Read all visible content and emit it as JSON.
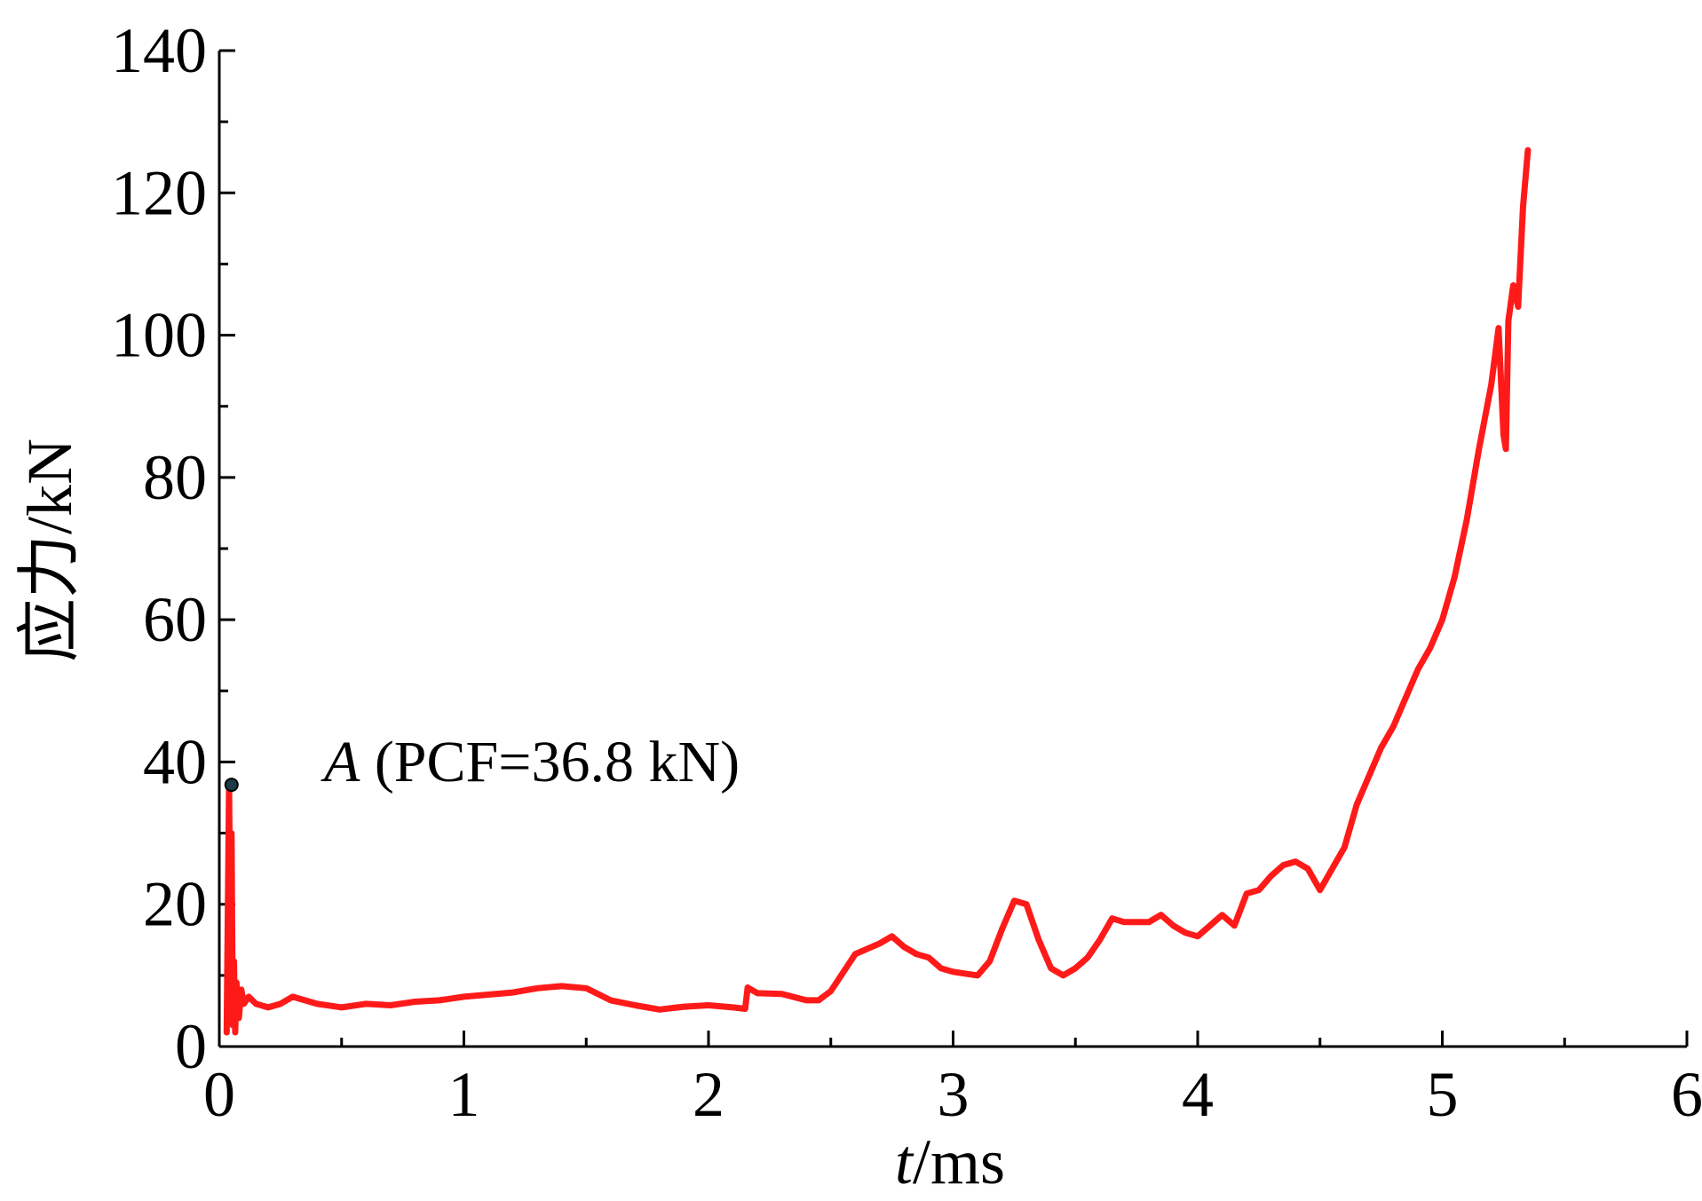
{
  "chart_data": {
    "type": "line",
    "title": "",
    "xlabel": {
      "italic": "t",
      "rest": "/ms"
    },
    "ylabel": "应力/kN",
    "xlim": [
      0,
      6
    ],
    "ylim": [
      0,
      140
    ],
    "x_ticks": [
      0,
      1,
      2,
      3,
      4,
      5,
      6
    ],
    "y_ticks": [
      0,
      20,
      40,
      60,
      80,
      100,
      120,
      140
    ],
    "grid": false,
    "annotation": {
      "italic": "A",
      "rest": " (PCF=36.8 kN)",
      "point": {
        "x": 0.05,
        "y": 36.8
      }
    },
    "series": [
      {
        "color": "#ff1a1a",
        "x": [
          0.03,
          0.04,
          0.045,
          0.05,
          0.055,
          0.06,
          0.065,
          0.07,
          0.08,
          0.09,
          0.1,
          0.12,
          0.15,
          0.2,
          0.25,
          0.3,
          0.35,
          0.4,
          0.5,
          0.6,
          0.7,
          0.8,
          0.9,
          1.0,
          1.1,
          1.2,
          1.3,
          1.4,
          1.5,
          1.6,
          1.7,
          1.8,
          1.9,
          2.0,
          2.1,
          2.15,
          2.16,
          2.2,
          2.3,
          2.4,
          2.45,
          2.5,
          2.6,
          2.7,
          2.75,
          2.8,
          2.85,
          2.9,
          2.95,
          3.0,
          3.1,
          3.15,
          3.2,
          3.25,
          3.3,
          3.35,
          3.4,
          3.45,
          3.5,
          3.55,
          3.6,
          3.65,
          3.7,
          3.8,
          3.85,
          3.9,
          3.95,
          4.0,
          4.05,
          4.1,
          4.15,
          4.2,
          4.25,
          4.3,
          4.35,
          4.4,
          4.45,
          4.5,
          4.55,
          4.6,
          4.65,
          4.7,
          4.75,
          4.8,
          4.85,
          4.9,
          4.95,
          5.0,
          5.05,
          5.1,
          5.15,
          5.2,
          5.23,
          5.25,
          5.26,
          5.27,
          5.29,
          5.31,
          5.33,
          5.35
        ],
        "y": [
          2,
          36.8,
          15,
          30,
          3,
          12,
          2,
          9,
          4,
          8,
          6,
          7,
          6,
          5.5,
          6,
          7,
          6.5,
          6,
          5.5,
          6,
          5.8,
          6.3,
          6.5,
          7,
          7.3,
          7.6,
          8.2,
          8.5,
          8.2,
          6.5,
          5.8,
          5.2,
          5.6,
          5.8,
          5.5,
          5.3,
          8.3,
          7.5,
          7.4,
          6.5,
          6.5,
          7.8,
          13,
          14.5,
          15.5,
          14,
          13,
          12.5,
          11,
          10.5,
          10,
          12,
          16.5,
          20.5,
          20,
          15,
          11,
          10,
          11,
          12.5,
          15,
          18,
          17.5,
          17.5,
          18.5,
          17,
          16,
          15.5,
          17,
          18.5,
          17,
          21.5,
          22,
          24,
          25.5,
          26,
          25,
          22,
          25,
          28,
          34,
          38,
          42,
          45,
          49,
          53,
          56,
          60,
          66,
          74,
          84,
          93,
          101,
          86,
          84,
          102,
          107,
          104,
          118,
          126
        ]
      }
    ]
  }
}
